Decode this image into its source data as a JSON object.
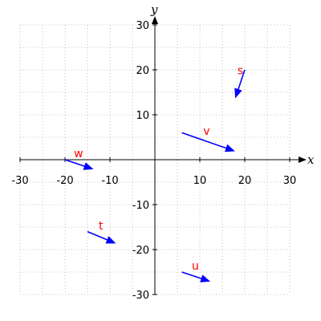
{
  "chart_data": {
    "type": "vector_plot",
    "xlabel": "x",
    "ylabel": "y",
    "xlim": [
      -30,
      30
    ],
    "ylim": [
      -30,
      30
    ],
    "xticks": [
      -30,
      -20,
      -10,
      10,
      20,
      30
    ],
    "yticks": [
      -30,
      -20,
      -10,
      10,
      20,
      30
    ],
    "x_tick_labels": [
      "-30",
      "-20",
      "-10",
      "10",
      "20",
      "30"
    ],
    "y_tick_labels": [
      "-30",
      "-20",
      "-10",
      "10",
      "20",
      "30"
    ],
    "grid": true,
    "vector_color": "#0000ff",
    "label_color": "#ff0000",
    "vectors": [
      {
        "name": "s",
        "start": [
          20,
          20
        ],
        "end": [
          18,
          14
        ],
        "label_at": [
          19,
          19
        ]
      },
      {
        "name": "v",
        "start": [
          6,
          6
        ],
        "end": [
          17.5,
          2
        ],
        "label_at": [
          11.5,
          5.5
        ]
      },
      {
        "name": "w",
        "start": [
          -20,
          0
        ],
        "end": [
          -14,
          -2
        ],
        "label_at": [
          -17,
          0.5
        ]
      },
      {
        "name": "t",
        "start": [
          -15,
          -16
        ],
        "end": [
          -9,
          -18.5
        ],
        "label_at": [
          -12,
          -15.5
        ]
      },
      {
        "name": "u",
        "start": [
          6,
          -25
        ],
        "end": [
          12,
          -27
        ],
        "label_at": [
          9,
          -24.5
        ]
      }
    ]
  }
}
